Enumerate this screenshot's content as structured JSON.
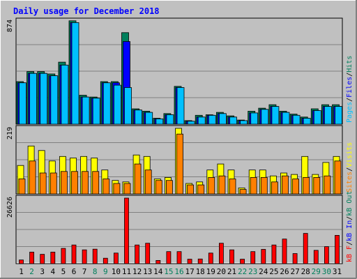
{
  "title": "Daily usage for December 2018",
  "colors": {
    "frame": "#c0c0c0",
    "plot_bg": "#c0c0c0",
    "title": "#0000ff",
    "axis_text": "#000000",
    "weekend_text": "#00805c",
    "grid": "#808080",
    "hits": "#00805c",
    "files": "#0000ff",
    "pages": "#00c0ff",
    "visits": "#ffff00",
    "sites": "#ff8000",
    "kb_in": "#0000ff",
    "kb_out": "#00805c",
    "kb_f": "#ff0000"
  },
  "chart_data": [
    {
      "type": "bar",
      "ymax_label": "874",
      "legend": [
        {
          "text": "Pages",
          "color": "#00c0ff"
        },
        {
          "text": "/",
          "color": "#000000"
        },
        {
          "text": "Files",
          "color": "#0000ff"
        },
        {
          "text": "/",
          "color": "#000000"
        },
        {
          "text": "Hits",
          "color": "#00805c"
        }
      ],
      "ylim": [
        0,
        874
      ],
      "categories": [
        "1",
        "2",
        "3",
        "4",
        "5",
        "6",
        "7",
        "8",
        "9",
        "10",
        "11",
        "12",
        "13",
        "14",
        "15",
        "16",
        "17",
        "18",
        "19",
        "20",
        "21",
        "22",
        "23",
        "24",
        "25",
        "26",
        "27",
        "28",
        "29",
        "30",
        "31"
      ],
      "series": [
        {
          "name": "Hits",
          "color": "#00805c",
          "values": [
            360,
            445,
            445,
            425,
            525,
            875,
            245,
            230,
            360,
            360,
            775,
            130,
            110,
            50,
            90,
            320,
            30,
            75,
            80,
            100,
            70,
            35,
            110,
            135,
            165,
            110,
            85,
            60,
            130,
            165,
            165
          ]
        },
        {
          "name": "Files",
          "color": "#0000ff",
          "values": [
            350,
            430,
            430,
            410,
            500,
            860,
            230,
            220,
            350,
            350,
            700,
            120,
            100,
            45,
            80,
            310,
            25,
            60,
            75,
            90,
            60,
            30,
            95,
            125,
            150,
            100,
            75,
            50,
            115,
            150,
            150
          ]
        },
        {
          "name": "Pages",
          "color": "#00c0ff",
          "values": [
            350,
            430,
            430,
            410,
            500,
            860,
            230,
            220,
            350,
            330,
            310,
            120,
            100,
            45,
            80,
            310,
            25,
            60,
            75,
            90,
            60,
            30,
            95,
            125,
            150,
            100,
            75,
            50,
            115,
            150,
            150
          ]
        }
      ]
    },
    {
      "type": "bar",
      "ymax_label": "219",
      "legend": [
        {
          "text": "Sites",
          "color": "#ff8000"
        },
        {
          "text": "/",
          "color": "#000000"
        },
        {
          "text": "Visits",
          "color": "#ffff00"
        }
      ],
      "ylim": [
        0,
        219
      ],
      "categories": [
        "1",
        "2",
        "3",
        "4",
        "5",
        "6",
        "7",
        "8",
        "9",
        "10",
        "11",
        "12",
        "13",
        "14",
        "15",
        "16",
        "17",
        "18",
        "19",
        "20",
        "21",
        "22",
        "23",
        "24",
        "25",
        "26",
        "27",
        "28",
        "29",
        "30",
        "31"
      ],
      "series": [
        {
          "name": "Visits",
          "color": "#ffff00",
          "values": [
            95,
            160,
            145,
            110,
            125,
            120,
            125,
            120,
            80,
            45,
            40,
            130,
            125,
            50,
            55,
            219,
            35,
            40,
            80,
            100,
            80,
            20,
            80,
            80,
            60,
            70,
            65,
            125,
            65,
            105,
            125
          ]
        },
        {
          "name": "Sites",
          "color": "#ff8000",
          "values": [
            50,
            110,
            70,
            70,
            75,
            75,
            75,
            75,
            50,
            35,
            35,
            100,
            80,
            45,
            45,
            200,
            30,
            30,
            55,
            60,
            50,
            15,
            55,
            55,
            40,
            60,
            50,
            55,
            55,
            60,
            110
          ]
        }
      ]
    },
    {
      "type": "bar",
      "ymax_label": "26626",
      "legend": [
        {
          "text": "kB F",
          "color": "#ff0000"
        },
        {
          "text": "/",
          "color": "#000000"
        },
        {
          "text": "kB In",
          "color": "#0000ff"
        },
        {
          "text": "/",
          "color": "#000000"
        },
        {
          "text": "kB Out",
          "color": "#00805c"
        }
      ],
      "ylim": [
        0,
        26626
      ],
      "categories": [
        "1",
        "2",
        "3",
        "4",
        "5",
        "6",
        "7",
        "8",
        "9",
        "10",
        "11",
        "12",
        "13",
        "14",
        "15",
        "16",
        "17",
        "18",
        "19",
        "20",
        "21",
        "22",
        "23",
        "24",
        "25",
        "26",
        "27",
        "28",
        "29",
        "30",
        "31"
      ],
      "series": [
        {
          "name": "kB F",
          "color": "#ff0000",
          "values": [
            1500,
            4700,
            3800,
            4700,
            6200,
            7600,
            5600,
            5900,
            2200,
            4300,
            26626,
            7600,
            8300,
            1300,
            4900,
            4900,
            1800,
            1900,
            4300,
            8300,
            5600,
            1800,
            4900,
            5800,
            7600,
            10000,
            4100,
            12300,
            5400,
            6900,
            11500
          ]
        }
      ]
    }
  ],
  "day_labels": [
    {
      "text": "1",
      "weekend": false
    },
    {
      "text": "2",
      "weekend": true
    },
    {
      "text": "3",
      "weekend": false
    },
    {
      "text": "4",
      "weekend": false
    },
    {
      "text": "5",
      "weekend": false
    },
    {
      "text": "6",
      "weekend": false
    },
    {
      "text": "7",
      "weekend": false
    },
    {
      "text": "8",
      "weekend": true
    },
    {
      "text": "9",
      "weekend": true
    },
    {
      "text": "10",
      "weekend": false
    },
    {
      "text": "11",
      "weekend": false
    },
    {
      "text": "12",
      "weekend": false
    },
    {
      "text": "13",
      "weekend": false
    },
    {
      "text": "14",
      "weekend": false
    },
    {
      "text": "15",
      "weekend": true
    },
    {
      "text": "16",
      "weekend": true
    },
    {
      "text": "17",
      "weekend": false
    },
    {
      "text": "18",
      "weekend": false
    },
    {
      "text": "19",
      "weekend": false
    },
    {
      "text": "20",
      "weekend": false
    },
    {
      "text": "21",
      "weekend": false
    },
    {
      "text": "22",
      "weekend": true
    },
    {
      "text": "23",
      "weekend": true
    },
    {
      "text": "24",
      "weekend": false
    },
    {
      "text": "25",
      "weekend": false
    },
    {
      "text": "26",
      "weekend": false
    },
    {
      "text": "27",
      "weekend": false
    },
    {
      "text": "28",
      "weekend": false
    },
    {
      "text": "29",
      "weekend": true
    },
    {
      "text": "30",
      "weekend": true
    },
    {
      "text": "31",
      "weekend": false
    }
  ]
}
